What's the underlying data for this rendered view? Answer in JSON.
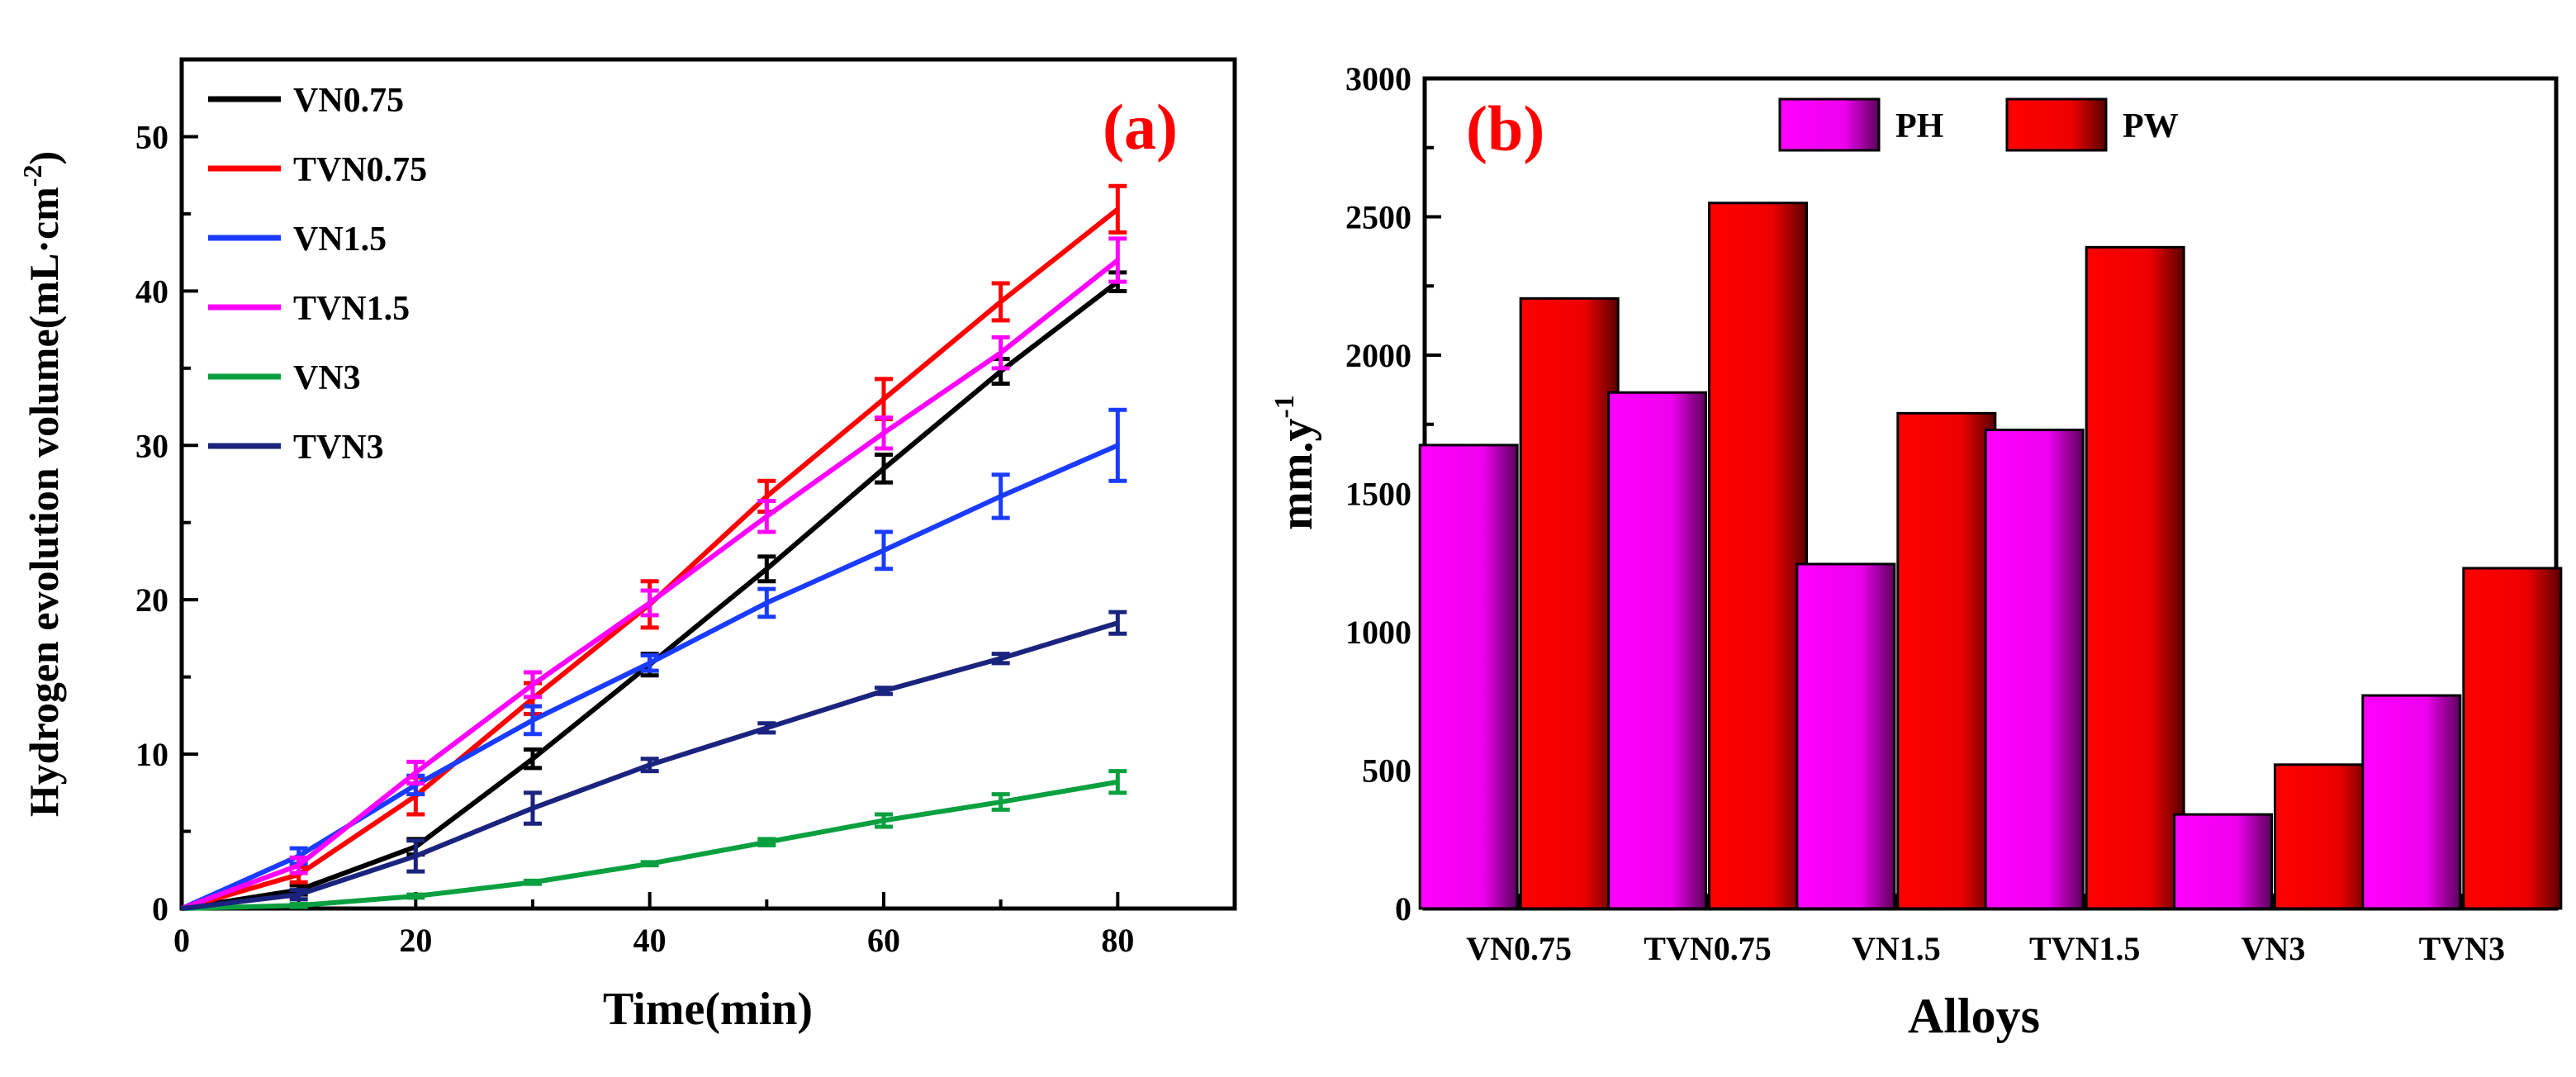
{
  "chart_data": [
    {
      "type": "line",
      "panel_label": "(a)",
      "xlabel": "Time(min)",
      "ylabel": "Hydrogen evolution volume(mL·cm",
      "ylabel_sup": "-2",
      "ylabel_close": ")",
      "xlim": [
        0,
        90
      ],
      "ylim": [
        0,
        55
      ],
      "xticks": [
        "0",
        "20",
        "40",
        "60",
        "80"
      ],
      "yticks": [
        "0",
        "10",
        "20",
        "30",
        "40",
        "50"
      ],
      "legend_position": "top-left",
      "x": [
        0,
        10,
        20,
        30,
        40,
        50,
        60,
        70,
        80
      ],
      "series": [
        {
          "name": "VN0.75",
          "color": "#000000",
          "values": [
            0,
            1.2,
            4.0,
            9.7,
            15.8,
            22.0,
            28.5,
            34.8,
            40.6
          ],
          "errors": [
            0,
            0.3,
            0.5,
            0.6,
            0.7,
            0.8,
            0.9,
            0.8,
            0.6
          ]
        },
        {
          "name": "TVN0.75",
          "color": "#ff0000",
          "values": [
            0,
            2.2,
            7.3,
            13.6,
            19.7,
            26.7,
            33.0,
            39.3,
            45.3
          ],
          "errors": [
            0,
            0.5,
            1.2,
            1.0,
            1.5,
            1.0,
            1.3,
            1.2,
            1.5
          ]
        },
        {
          "name": "VN1.5",
          "color": "#1a3cff",
          "values": [
            0,
            3.4,
            8.0,
            12.2,
            15.9,
            19.8,
            23.2,
            26.7,
            30.0
          ],
          "errors": [
            0,
            0.5,
            0.6,
            0.9,
            0.5,
            0.9,
            1.2,
            1.4,
            2.3
          ]
        },
        {
          "name": "TVN1.5",
          "color": "#ff00ff",
          "values": [
            0,
            2.8,
            8.8,
            14.5,
            19.8,
            25.4,
            30.8,
            36.0,
            42.0
          ],
          "errors": [
            0,
            0.5,
            0.7,
            0.8,
            0.8,
            1.0,
            1.0,
            1.0,
            1.4
          ]
        },
        {
          "name": "VN3",
          "color": "#0aa040",
          "values": [
            0,
            0.2,
            0.8,
            1.7,
            2.9,
            4.3,
            5.7,
            6.9,
            8.2
          ],
          "errors": [
            0,
            0.1,
            0.1,
            0.1,
            0.1,
            0.2,
            0.4,
            0.5,
            0.7
          ]
        },
        {
          "name": "TVN3",
          "color": "#1a237e",
          "values": [
            0,
            0.9,
            3.4,
            6.5,
            9.3,
            11.7,
            14.1,
            16.2,
            18.5
          ],
          "errors": [
            0,
            0.3,
            1.0,
            1.0,
            0.4,
            0.3,
            0.2,
            0.3,
            0.7
          ]
        }
      ]
    },
    {
      "type": "bar",
      "panel_label": "(b)",
      "xlabel": "Alloys",
      "ylabel": "mm.y",
      "ylabel_sup": "-1",
      "ylim": [
        0,
        3000
      ],
      "yticks": [
        "0",
        "500",
        "1000",
        "1500",
        "2000",
        "2500",
        "3000"
      ],
      "categories": [
        "VN0.75",
        "TVN0.75",
        "VN1.5",
        "TVN1.5",
        "VN3",
        "TVN3"
      ],
      "legend_position": "top-center",
      "series": [
        {
          "name": "PH",
          "color": "#ff00ff",
          "values": [
            1675,
            1865,
            1245,
            1730,
            340,
            770
          ]
        },
        {
          "name": "PW",
          "color": "#ff0000",
          "values": [
            2205,
            2550,
            1790,
            2390,
            520,
            1230
          ]
        }
      ]
    }
  ]
}
